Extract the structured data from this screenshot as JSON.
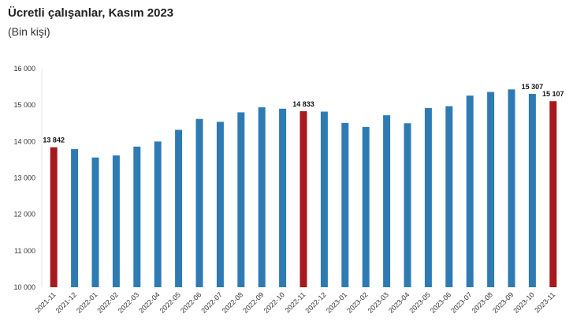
{
  "chart_data": {
    "type": "bar",
    "title": "Ücretli çalışanlar, Kasım 2023",
    "subtitle": "(Bin kişi)",
    "xlabel": "",
    "ylabel": "",
    "ylim": [
      10000,
      16000
    ],
    "yticks": [
      "10 000",
      "11 000",
      "12 000",
      "13 000",
      "14 000",
      "15 000",
      "16 000"
    ],
    "ytick_values": [
      10000,
      11000,
      12000,
      13000,
      14000,
      15000,
      16000
    ],
    "grid": false,
    "colors": {
      "default": "#2e7bb4",
      "highlight": "#a6191e"
    },
    "categories": [
      "2021-11",
      "2021-12",
      "2022-01",
      "2022-02",
      "2022-03",
      "2022-04",
      "2022-05",
      "2022-06",
      "2022-07",
      "2022-08",
      "2022-09",
      "2022-10",
      "2022-11",
      "2022-12",
      "2023-01",
      "2023-02",
      "2023-03",
      "2023-04",
      "2023-05",
      "2023-06",
      "2023-07",
      "2023-08",
      "2023-09",
      "2023-10",
      "2023-11"
    ],
    "values": [
      13842,
      13790,
      13560,
      13620,
      13860,
      14000,
      14320,
      14620,
      14540,
      14800,
      14940,
      14900,
      14833,
      14820,
      14510,
      14400,
      14720,
      14500,
      14920,
      14970,
      15260,
      15360,
      15430,
      15307,
      15107
    ],
    "highlight": [
      true,
      false,
      false,
      false,
      false,
      false,
      false,
      false,
      false,
      false,
      false,
      false,
      true,
      false,
      false,
      false,
      false,
      false,
      false,
      false,
      false,
      false,
      false,
      false,
      true
    ],
    "data_labels": [
      "13 842",
      "",
      "",
      "",
      "",
      "",
      "",
      "",
      "",
      "",
      "",
      "",
      "14 833",
      "",
      "",
      "",
      "",
      "",
      "",
      "",
      "",
      "",
      "",
      "15 307",
      "15 107"
    ]
  }
}
